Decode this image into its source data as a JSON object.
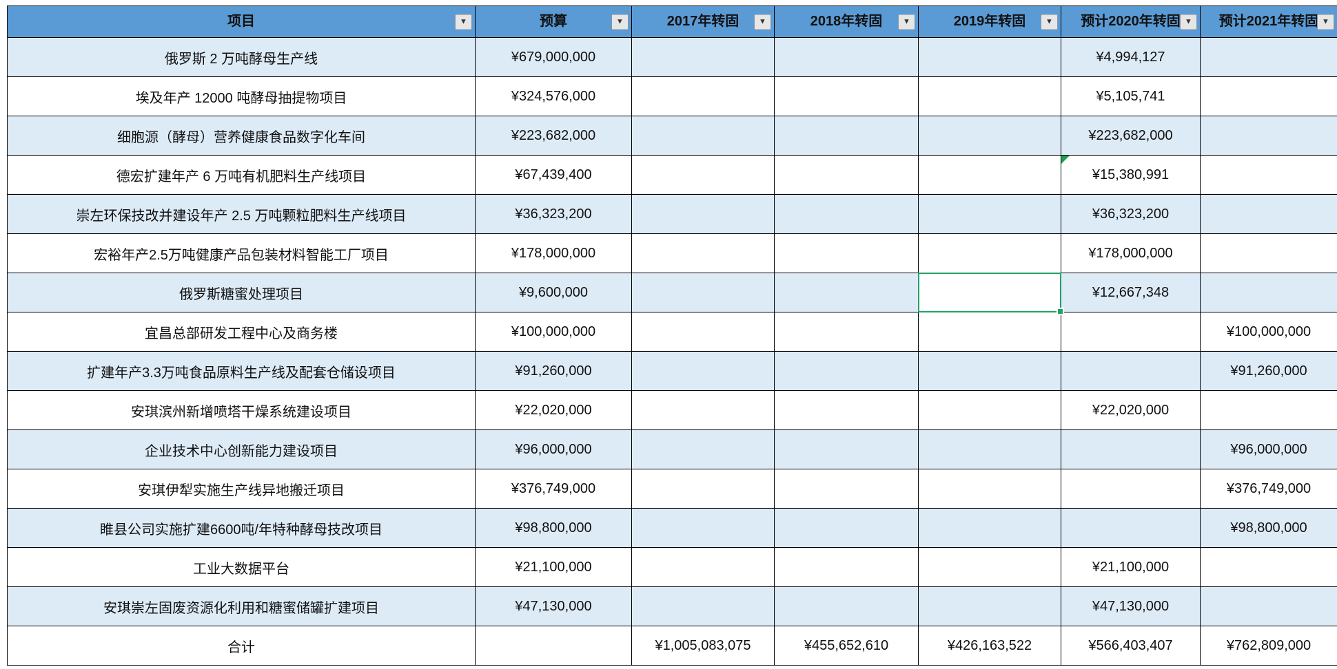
{
  "table": {
    "columns": [
      {
        "label": "项目"
      },
      {
        "label": "预算"
      },
      {
        "label": "2017年转固"
      },
      {
        "label": "2018年转固"
      },
      {
        "label": "2019年转固"
      },
      {
        "label": "预计2020年转固"
      },
      {
        "label": "预计2021年转固"
      }
    ],
    "rows": [
      [
        "俄罗斯 2 万吨酵母生产线",
        "¥679,000,000",
        "",
        "",
        "",
        "¥4,994,127",
        ""
      ],
      [
        "埃及年产 12000 吨酵母抽提物项目",
        "¥324,576,000",
        "",
        "",
        "",
        "¥5,105,741",
        ""
      ],
      [
        "细胞源（酵母）营养健康食品数字化车间",
        "¥223,682,000",
        "",
        "",
        "",
        "¥223,682,000",
        ""
      ],
      [
        "德宏扩建年产 6 万吨有机肥料生产线项目",
        "¥67,439,400",
        "",
        "",
        "",
        "¥15,380,991",
        ""
      ],
      [
        "崇左环保技改并建设年产 2.5 万吨颗粒肥料生产线项目",
        "¥36,323,200",
        "",
        "",
        "",
        "¥36,323,200",
        ""
      ],
      [
        "宏裕年产2.5万吨健康产品包装材料智能工厂项目",
        "¥178,000,000",
        "",
        "",
        "",
        "¥178,000,000",
        ""
      ],
      [
        "俄罗斯糖蜜处理项目",
        "¥9,600,000",
        "",
        "",
        "",
        "¥12,667,348",
        ""
      ],
      [
        "宜昌总部研发工程中心及商务楼",
        "¥100,000,000",
        "",
        "",
        "",
        "",
        "¥100,000,000"
      ],
      [
        "扩建年产3.3万吨食品原料生产线及配套仓储设项目",
        "¥91,260,000",
        "",
        "",
        "",
        "",
        "¥91,260,000"
      ],
      [
        "安琪滨州新增喷塔干燥系统建设项目",
        "¥22,020,000",
        "",
        "",
        "",
        "¥22,020,000",
        ""
      ],
      [
        "企业技术中心创新能力建设项目",
        "¥96,000,000",
        "",
        "",
        "",
        "",
        "¥96,000,000"
      ],
      [
        "安琪伊犁实施生产线异地搬迁项目",
        "¥376,749,000",
        "",
        "",
        "",
        "",
        "¥376,749,000"
      ],
      [
        "睢县公司实施扩建6600吨/年特种酵母技改项目",
        "¥98,800,000",
        "",
        "",
        "",
        "",
        "¥98,800,000"
      ],
      [
        "工业大数据平台",
        "¥21,100,000",
        "",
        "",
        "",
        "¥21,100,000",
        ""
      ],
      [
        "安琪崇左固废资源化利用和糖蜜储罐扩建项目",
        "¥47,130,000",
        "",
        "",
        "",
        "¥47,130,000",
        ""
      ]
    ],
    "total_row": [
      "合计",
      "",
      "¥1,005,083,075",
      "¥455,652,610",
      "¥426,163,522",
      "¥566,403,407",
      "¥762,809,000"
    ],
    "selected_cell": {
      "row_index": 6,
      "col_index": 4
    },
    "flag_cell": {
      "row_index": 3,
      "col_index": 5
    },
    "colors": {
      "header_bg": "#5B9BD5",
      "band_bg": "#DDEBF7",
      "white_bg": "#FFFFFF",
      "border": "#000000",
      "selection": "#21A366",
      "flag": "#1E9E50"
    }
  }
}
